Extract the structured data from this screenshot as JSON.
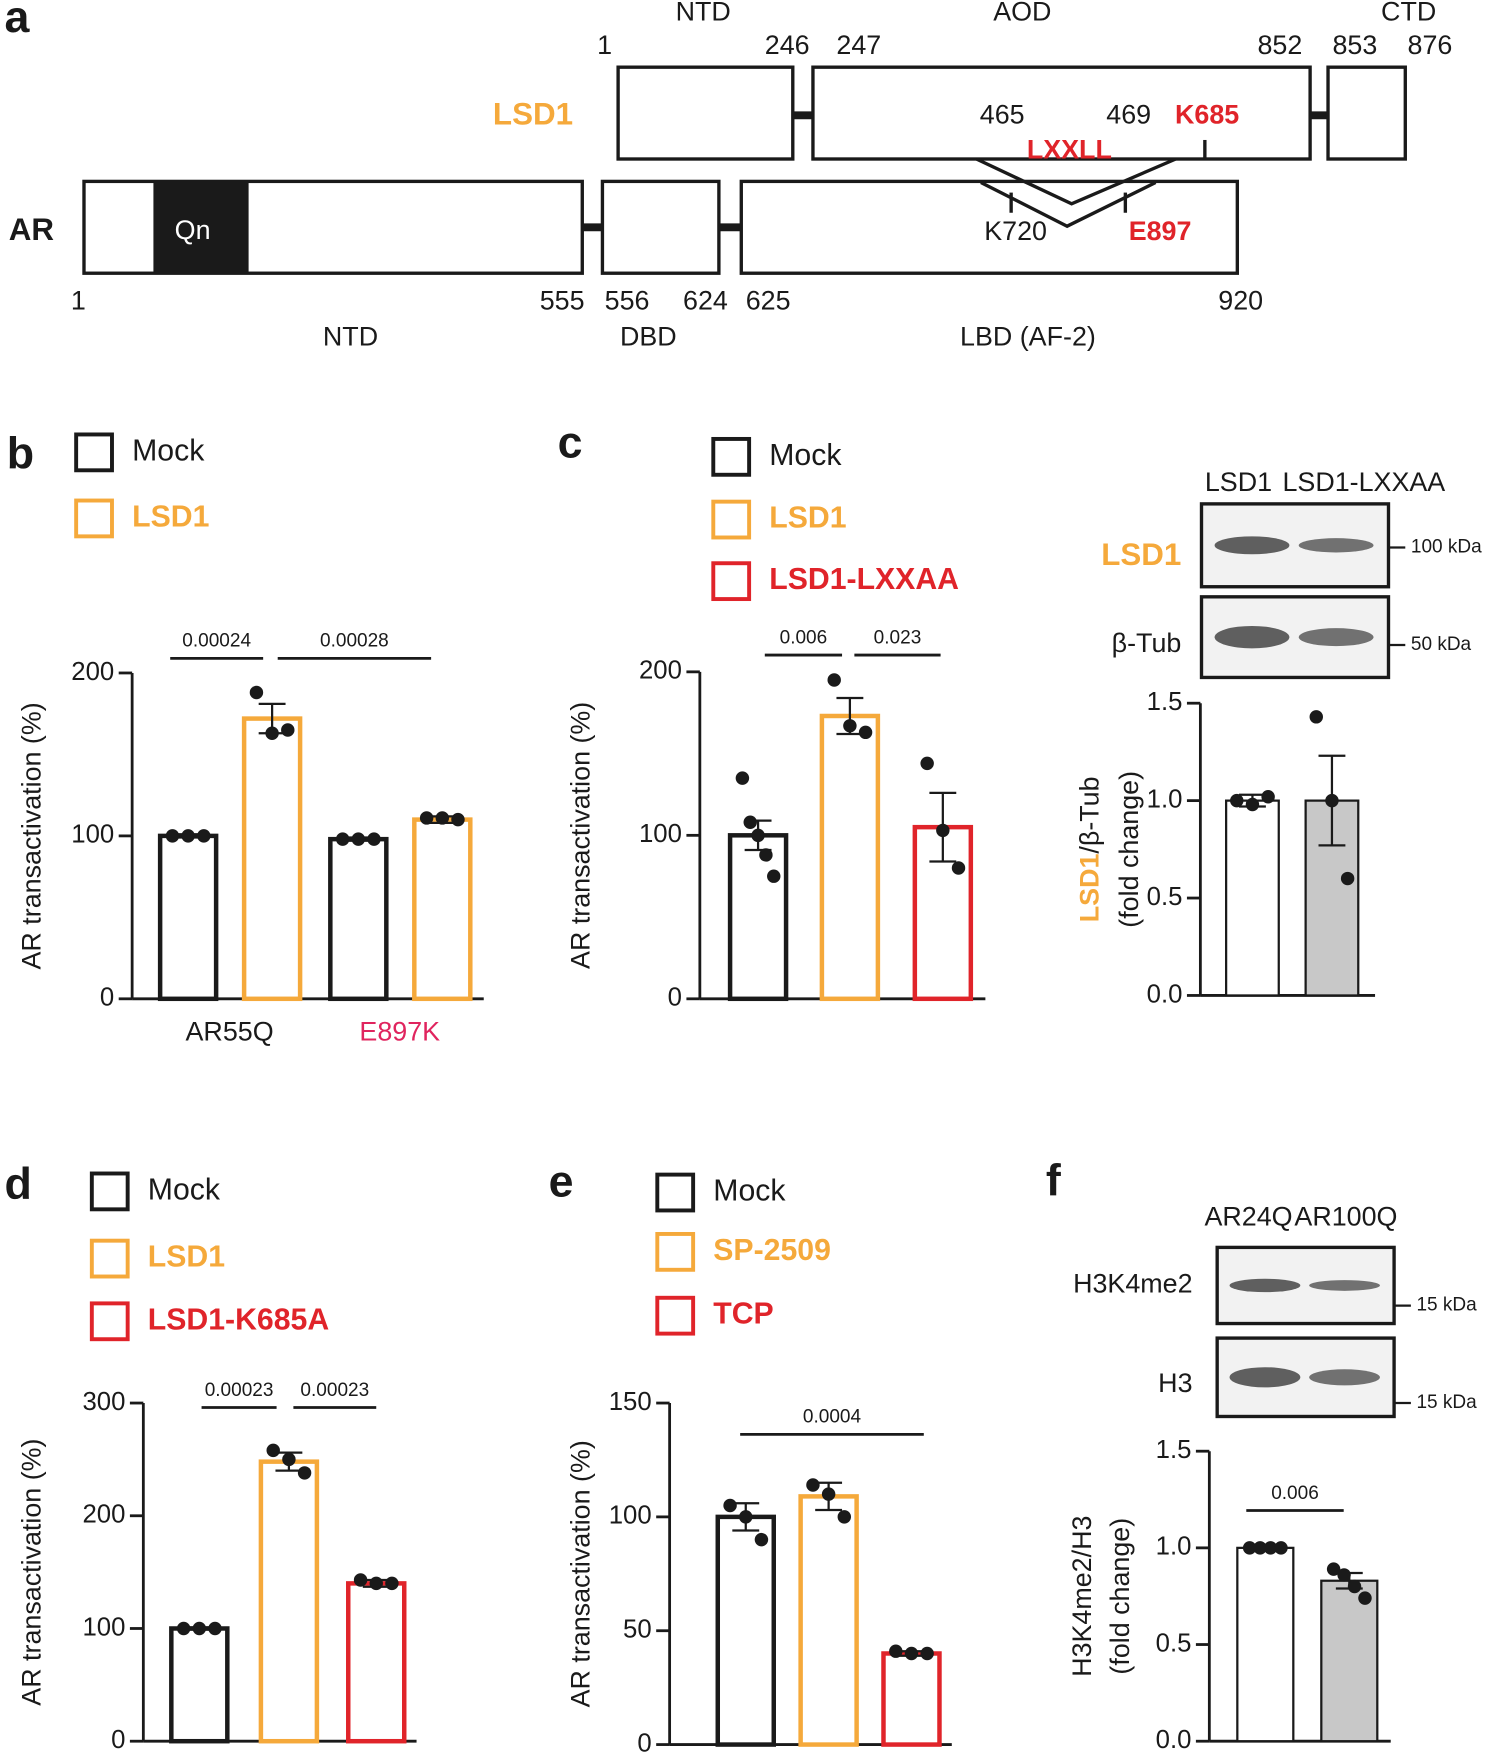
{
  "diagram": {
    "letter": "a",
    "lsd1": {
      "name": "LSD1",
      "domains": [
        "NTD",
        "AOD",
        "CTD"
      ],
      "boundaries": [
        1,
        246,
        247,
        852,
        853,
        876
      ],
      "sites": [
        465,
        469,
        "K685"
      ],
      "motif": "LXXLL"
    },
    "ar": {
      "name": "AR",
      "repeat": "Qn",
      "sites": [
        "K720",
        "E897"
      ],
      "boundaries": [
        1,
        555,
        556,
        624,
        625,
        920
      ],
      "domains": [
        "NTD",
        "DBD",
        "LBD (AF-2)"
      ]
    }
  },
  "blots": [
    {
      "lanes": [
        "LSD1",
        "LSD1-LXXAA"
      ],
      "rows": [
        "LSD1",
        "β-Tub"
      ],
      "row_colors": [
        "#f5a93b",
        "#1a1a1a"
      ],
      "markers": [
        "100 kDa",
        "50 kDa"
      ]
    },
    {
      "letter": "f",
      "lanes": [
        "AR24Q",
        "AR100Q"
      ],
      "rows": [
        "H3K4me2",
        "H3"
      ],
      "row_colors": [
        "#1a1a1a",
        "#1a1a1a"
      ],
      "markers": [
        "15 kDa",
        "15 kDa"
      ]
    }
  ],
  "chart_data": [
    {
      "panel": "b",
      "type": "bar",
      "ylabel": "AR transactivation (%)",
      "categories": [
        "AR55Q",
        "E897K"
      ],
      "category_colors": [
        "#1a1a1a",
        "#e0245e"
      ],
      "series": [
        {
          "name": "Mock",
          "color": "#1a1a1a",
          "values": [
            100,
            98
          ],
          "errors": [
            1,
            1
          ],
          "points": [
            [
              100,
              100,
              100
            ],
            [
              98,
              98,
              98
            ]
          ]
        },
        {
          "name": "LSD1",
          "color": "#f5a93b",
          "values": [
            172,
            110
          ],
          "errors": [
            9,
            2
          ],
          "points": [
            [
              188,
              163,
              165
            ],
            [
              111,
              111,
              110
            ]
          ]
        }
      ],
      "ylim": [
        0,
        200
      ],
      "yticks": [
        0,
        100,
        200
      ],
      "annotations": [
        "0.00024",
        "0.00028"
      ]
    },
    {
      "panel": "c",
      "type": "bar",
      "ylabel": "AR transactivation (%)",
      "categories": [
        null
      ],
      "series": [
        {
          "name": "Mock",
          "color": "#1a1a1a",
          "values": [
            100
          ],
          "errors": [
            9
          ],
          "points": [
            [
              135,
              108,
              100,
              88,
              75
            ]
          ]
        },
        {
          "name": "LSD1",
          "color": "#f5a93b",
          "values": [
            173
          ],
          "errors": [
            11
          ],
          "points": [
            [
              195,
              167,
              163
            ]
          ]
        },
        {
          "name": "LSD1-LXXAA",
          "color": "#e0242a",
          "values": [
            105
          ],
          "errors": [
            21
          ],
          "points": [
            [
              144,
              103,
              80
            ]
          ]
        }
      ],
      "ylim": [
        0,
        200
      ],
      "yticks": [
        0,
        100,
        200
      ],
      "annotations": [
        "0.006",
        "0.023"
      ]
    },
    {
      "type": "bar",
      "ylabel": [
        [
          {
            "text": "LSD1",
            "color": "#f5a93b"
          },
          {
            "text": "/β-Tub"
          }
        ],
        [
          {
            "text": "(fold change)"
          }
        ]
      ],
      "categories": [
        null,
        null
      ],
      "values": [
        1,
        1
      ],
      "errors": [
        0.03,
        0.23
      ],
      "points": [
        [
          1,
          0.98,
          1.02
        ],
        [
          1.43,
          1,
          0.6
        ]
      ],
      "colors": [
        "#ffffff",
        "#c8c8c8"
      ],
      "ylim": [
        0,
        1.5
      ],
      "yticks": [
        {
          "value": 0,
          "label": "0.0"
        },
        0.5,
        {
          "value": 1,
          "label": "1.0"
        },
        1.5
      ]
    },
    {
      "panel": "d",
      "type": "bar",
      "ylabel": "AR transactivation (%)",
      "categories": [
        null
      ],
      "series": [
        {
          "name": "Mock",
          "color": "#1a1a1a",
          "values": [
            100
          ],
          "errors": [
            1
          ],
          "points": [
            [
              100,
              100,
              100
            ]
          ]
        },
        {
          "name": "LSD1",
          "color": "#f5a93b",
          "values": [
            248
          ],
          "errors": [
            8
          ],
          "points": [
            [
              258,
              250,
              238
            ]
          ]
        },
        {
          "name": "LSD1-K685A",
          "color": "#e0242a",
          "values": [
            140
          ],
          "errors": [
            3
          ],
          "points": [
            [
              143,
              140,
              140
            ]
          ]
        }
      ],
      "ylim": [
        0,
        300
      ],
      "yticks": [
        0,
        100,
        200,
        300
      ],
      "annotations": [
        "0.00023",
        "0.00023"
      ]
    },
    {
      "panel": "e",
      "type": "bar",
      "ylabel": "AR transactivation (%)",
      "categories": [
        null
      ],
      "series": [
        {
          "name": "Mock",
          "color": "#1a1a1a",
          "values": [
            100
          ],
          "errors": [
            6
          ],
          "points": [
            [
              105,
              100,
              90
            ]
          ]
        },
        {
          "name": "SP-2509",
          "color": "#f5a93b",
          "values": [
            109
          ],
          "errors": [
            6
          ],
          "points": [
            [
              114,
              110,
              100
            ]
          ]
        },
        {
          "name": "TCP",
          "color": "#e0242a",
          "values": [
            40
          ],
          "errors": [
            1
          ],
          "points": [
            [
              41,
              40,
              40
            ]
          ]
        }
      ],
      "ylim": [
        0,
        150
      ],
      "yticks": [
        0,
        50,
        100,
        150
      ],
      "annotations": [
        "0.0004"
      ]
    },
    {
      "type": "bar",
      "ylabel": [
        [
          {
            "text": "H3K4me2/H3"
          }
        ],
        [
          {
            "text": "(fold change)"
          }
        ]
      ],
      "categories": [
        null,
        null
      ],
      "values": [
        1,
        0.83
      ],
      "errors": [
        0.005,
        0.04
      ],
      "points": [
        [
          1,
          1,
          1,
          1
        ],
        [
          0.89,
          0.86,
          0.8,
          0.74
        ]
      ],
      "colors": [
        "#ffffff",
        "#c8c8c8"
      ],
      "ylim": [
        0,
        1.5
      ],
      "yticks": [
        {
          "value": 0,
          "label": "0.0"
        },
        0.5,
        {
          "value": 1,
          "label": "1.0"
        },
        1.5
      ],
      "annotations": [
        "0.006"
      ]
    }
  ]
}
